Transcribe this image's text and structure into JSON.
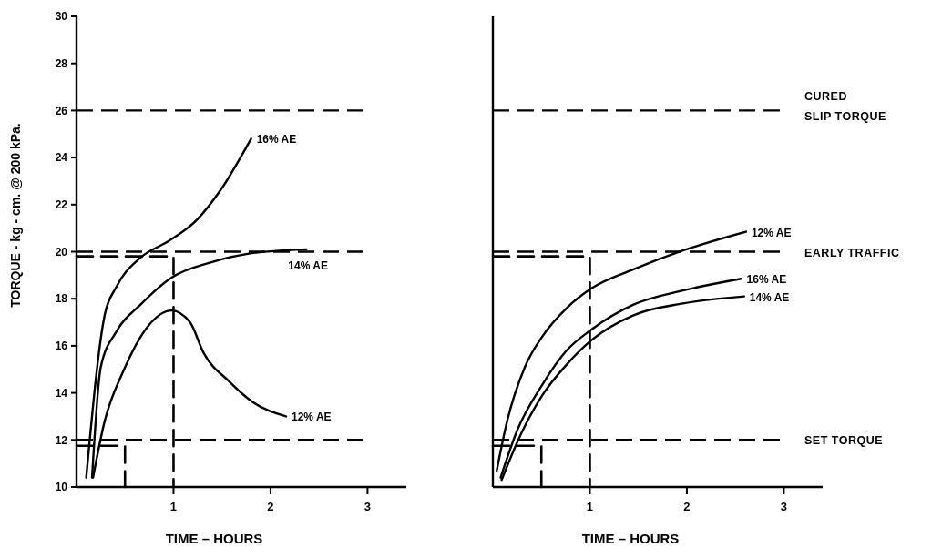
{
  "chart_data": [
    {
      "type": "line",
      "xlabel": "TIME – HOURS",
      "ylabel": "TORQUE - kg - cm. @ 200 kPa.",
      "xlim": [
        0,
        3.4
      ],
      "ylim": [
        10,
        30
      ],
      "xticks": [
        1,
        2,
        3
      ],
      "yticks": [
        10,
        12,
        14,
        16,
        18,
        20,
        22,
        24,
        26,
        28,
        30
      ],
      "ref_lines": [
        {
          "axis": "y",
          "value": 26,
          "line_style": "dashed"
        },
        {
          "axis": "y",
          "value": 20,
          "line_style": "dashed"
        },
        {
          "axis": "y",
          "value": 12,
          "line_style": "dashed"
        }
      ],
      "series": [
        {
          "name": "16% AE",
          "color": "#000000",
          "x": [
            0.1,
            0.29,
            0.41,
            0.66,
            0.95,
            1.24,
            1.49,
            1.8
          ],
          "values": [
            10.4,
            17.3,
            18.5,
            19.75,
            20.45,
            21.35,
            22.65,
            24.8
          ]
        },
        {
          "name": "14% AE",
          "color": "#000000",
          "x": [
            0.16,
            0.25,
            0.41,
            0.66,
            0.98,
            1.39,
            1.75,
            2.37
          ],
          "values": [
            10.4,
            15.1,
            16.6,
            17.75,
            18.9,
            19.55,
            19.9,
            20.1
          ]
        },
        {
          "name": "12% AE",
          "color": "#000000",
          "x": [
            0.17,
            0.29,
            0.48,
            0.74,
            0.98,
            1.17,
            1.31,
            1.57,
            1.82,
            2.16
          ],
          "values": [
            10.4,
            12.8,
            14.9,
            16.85,
            17.5,
            17.0,
            15.7,
            14.5,
            13.6,
            13.0
          ]
        },
        {
          "color": "#000000",
          "line_style": "dashed",
          "x": [
            0,
            1,
            1
          ],
          "values": [
            19.8,
            19.8,
            10
          ]
        },
        {
          "color": "#000000",
          "line_style": "dashed",
          "x": [
            0,
            0.5,
            0.5
          ],
          "values": [
            11.75,
            11.75,
            10
          ]
        }
      ]
    },
    {
      "type": "line",
      "xlabel": "TIME – HOURS",
      "xlim": [
        0,
        3.4
      ],
      "ylim": [
        10,
        30
      ],
      "xticks": [
        1,
        2,
        3
      ],
      "tick_labels": "x",
      "ref_lines": [
        {
          "axis": "y",
          "value": 26,
          "label": "CURED\nSLIP TORQUE",
          "line_style": "dashed"
        },
        {
          "axis": "y",
          "value": 20,
          "label": "EARLY TRAFFIC",
          "line_style": "dashed"
        },
        {
          "axis": "y",
          "value": 12,
          "label": "SET TORQUE",
          "line_style": "dashed"
        }
      ],
      "series": [
        {
          "name": "12% AE",
          "color": "#000000",
          "x": [
            0.04,
            0.15,
            0.33,
            0.51,
            0.76,
            1.02,
            1.45,
            1.96,
            2.61
          ],
          "values": [
            10.7,
            12.85,
            15.1,
            16.4,
            17.6,
            18.45,
            19.25,
            20.05,
            20.85
          ]
        },
        {
          "name": "16% AE",
          "color": "#000000",
          "x": [
            0.08,
            0.25,
            0.51,
            0.76,
            1.02,
            1.45,
            1.96,
            2.56
          ],
          "values": [
            10.4,
            12.4,
            14.35,
            15.8,
            16.7,
            17.75,
            18.35,
            18.85
          ]
        },
        {
          "name": "14% AE",
          "color": "#000000",
          "x": [
            0.09,
            0.29,
            0.51,
            0.76,
            1.02,
            1.45,
            1.96,
            2.59
          ],
          "values": [
            10.3,
            12.25,
            13.9,
            15.2,
            16.25,
            17.3,
            17.8,
            18.1
          ]
        },
        {
          "color": "#000000",
          "line_style": "dashed",
          "x": [
            0,
            1,
            1
          ],
          "values": [
            19.8,
            19.8,
            10
          ]
        },
        {
          "color": "#000000",
          "line_style": "dashed",
          "x": [
            0,
            0.5,
            0.5
          ],
          "values": [
            11.75,
            11.75,
            10
          ]
        }
      ]
    }
  ]
}
